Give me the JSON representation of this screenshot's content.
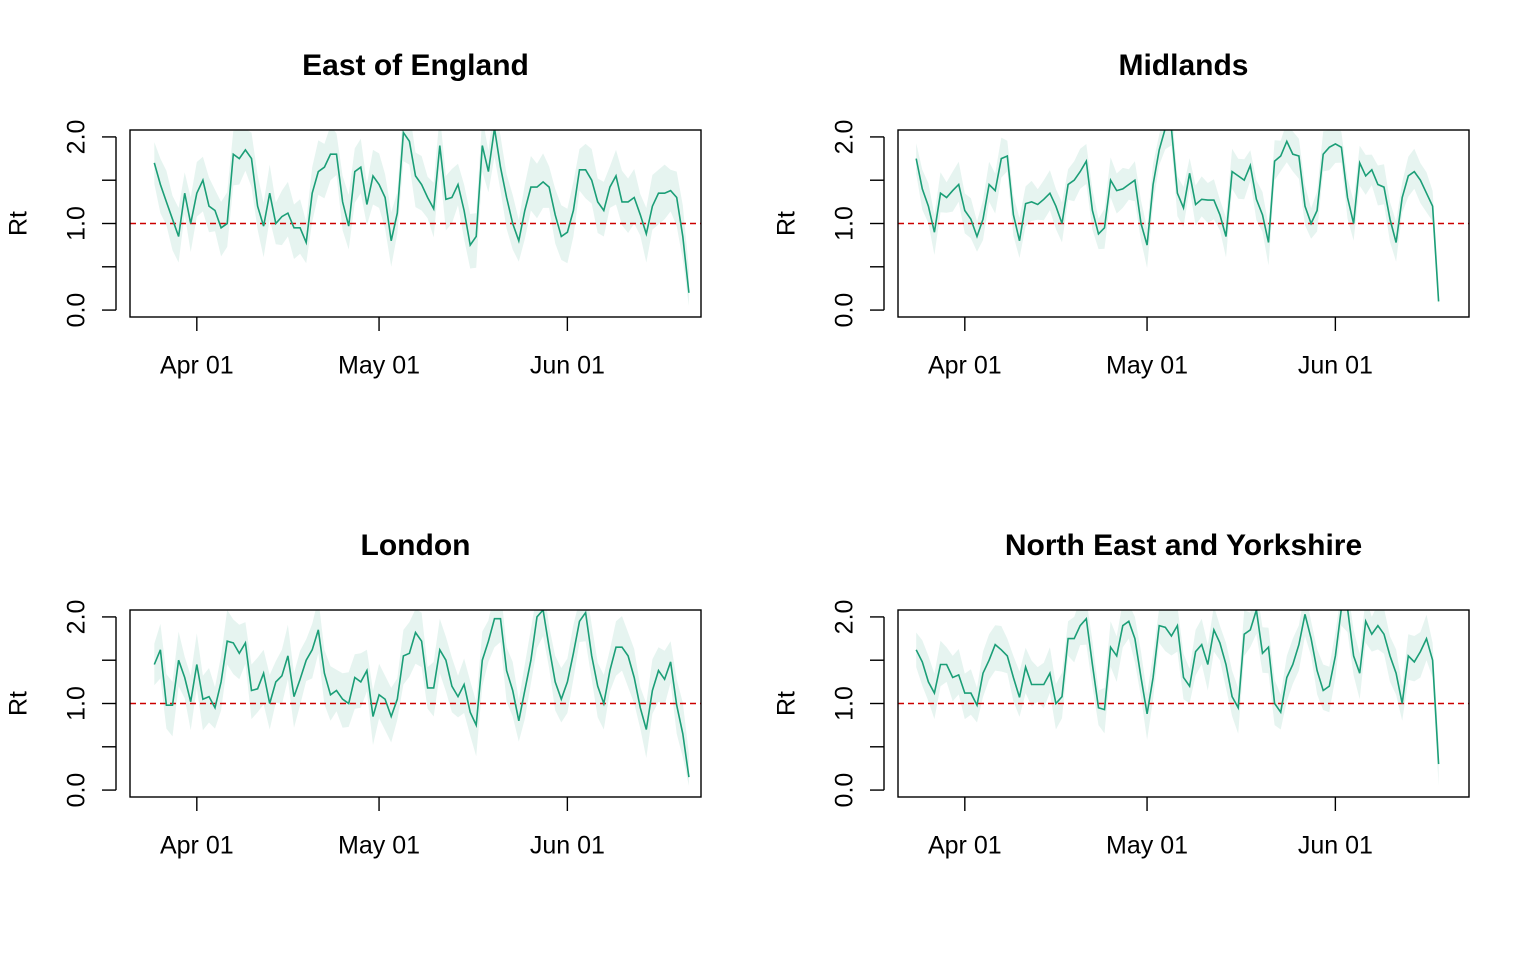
{
  "colors": {
    "line": "#1b9e77",
    "band": "#e6f4f0",
    "reference": "#cc0000",
    "axis": "#000000"
  },
  "chart_data": [
    {
      "type": "line",
      "title": "East of England",
      "ylabel": "Rt",
      "xlim": [
        "2020-03-21",
        "2020-06-23"
      ],
      "ylim": [
        0,
        2
      ],
      "yticks": [
        "0.0",
        "1.0",
        "2.0"
      ],
      "xticks": [
        {
          "date": "2020-04-01",
          "label": "Apr 01"
        },
        {
          "date": "2020-05-01",
          "label": "May 01"
        },
        {
          "date": "2020-06-01",
          "label": "Jun 01"
        }
      ],
      "reference_line": 1.0,
      "x_start": "2020-03-25",
      "values": [
        1.7,
        1.45,
        1.25,
        1.05,
        0.85,
        1.35,
        1.0,
        1.35,
        1.5,
        1.2,
        1.15,
        0.95,
        1.0,
        1.8,
        1.75,
        1.85,
        1.75,
        1.2,
        0.97,
        1.35,
        1.0,
        1.08,
        1.12,
        0.95,
        0.95,
        0.78,
        1.35,
        1.6,
        1.65,
        1.8,
        1.8,
        1.25,
        0.97,
        1.6,
        1.65,
        1.22,
        1.55,
        1.45,
        1.3,
        0.8,
        1.12,
        2.05,
        1.95,
        1.55,
        1.45,
        1.3,
        1.17,
        1.9,
        1.28,
        1.3,
        1.45,
        1.15,
        0.75,
        0.85,
        1.9,
        1.6,
        2.1,
        1.65,
        1.3,
        1.0,
        0.8,
        1.15,
        1.42,
        1.42,
        1.48,
        1.42,
        1.1,
        0.85,
        0.9,
        1.15,
        1.62,
        1.62,
        1.5,
        1.25,
        1.15,
        1.42,
        1.55,
        1.25,
        1.25,
        1.3,
        1.1,
        0.88,
        1.2,
        1.35,
        1.35,
        1.38,
        1.3,
        0.85,
        0.2
      ],
      "band_half_width": 0.3
    },
    {
      "type": "line",
      "title": "Midlands",
      "ylabel": "Rt",
      "xlim": [
        "2020-03-21",
        "2020-06-23"
      ],
      "ylim": [
        0,
        2
      ],
      "yticks": [
        "0.0",
        "1.0",
        "2.0"
      ],
      "xticks": [
        {
          "date": "2020-04-01",
          "label": "Apr 01"
        },
        {
          "date": "2020-05-01",
          "label": "May 01"
        },
        {
          "date": "2020-06-01",
          "label": "Jun 01"
        }
      ],
      "reference_line": 1.0,
      "x_start": "2020-03-24",
      "values": [
        1.75,
        1.4,
        1.2,
        0.9,
        1.35,
        1.3,
        1.38,
        1.45,
        1.15,
        1.05,
        0.85,
        1.05,
        1.45,
        1.38,
        1.75,
        1.78,
        1.1,
        0.8,
        1.23,
        1.25,
        1.22,
        1.28,
        1.35,
        1.2,
        1.0,
        1.45,
        1.5,
        1.6,
        1.72,
        1.15,
        0.88,
        0.95,
        1.5,
        1.38,
        1.4,
        1.45,
        1.5,
        1.0,
        0.75,
        1.45,
        1.85,
        2.1,
        2.1,
        1.35,
        1.18,
        1.58,
        1.22,
        1.28,
        1.27,
        1.27,
        1.1,
        0.85,
        1.6,
        1.55,
        1.5,
        1.67,
        1.28,
        1.1,
        0.78,
        1.72,
        1.78,
        1.95,
        1.8,
        1.78,
        1.2,
        1.0,
        1.15,
        1.8,
        1.88,
        1.92,
        1.88,
        1.3,
        1.0,
        1.7,
        1.55,
        1.62,
        1.45,
        1.42,
        1.05,
        0.78,
        1.3,
        1.55,
        1.6,
        1.5,
        1.35,
        1.2,
        0.1
      ],
      "band_half_width": 0.22
    },
    {
      "type": "line",
      "title": "London",
      "ylabel": "Rt",
      "xlim": [
        "2020-03-21",
        "2020-06-23"
      ],
      "ylim": [
        0,
        2
      ],
      "yticks": [
        "0.0",
        "1.0",
        "2.0"
      ],
      "xticks": [
        {
          "date": "2020-04-01",
          "label": "Apr 01"
        },
        {
          "date": "2020-05-01",
          "label": "May 01"
        },
        {
          "date": "2020-06-01",
          "label": "Jun 01"
        }
      ],
      "reference_line": 1.0,
      "x_start": "2020-03-25",
      "values": [
        1.45,
        1.62,
        0.98,
        0.98,
        1.5,
        1.3,
        1.02,
        1.45,
        1.05,
        1.08,
        0.95,
        1.25,
        1.72,
        1.7,
        1.58,
        1.7,
        1.15,
        1.17,
        1.35,
        1.0,
        1.25,
        1.32,
        1.55,
        1.08,
        1.28,
        1.5,
        1.62,
        1.85,
        1.35,
        1.1,
        1.15,
        1.05,
        1.0,
        1.3,
        1.25,
        1.38,
        0.85,
        1.1,
        1.05,
        0.85,
        1.05,
        1.55,
        1.58,
        1.82,
        1.72,
        1.18,
        1.18,
        1.62,
        1.5,
        1.2,
        1.08,
        1.22,
        0.9,
        0.75,
        1.5,
        1.72,
        1.98,
        1.98,
        1.38,
        1.15,
        0.8,
        1.15,
        1.5,
        2.0,
        2.08,
        1.65,
        1.25,
        1.05,
        1.25,
        1.58,
        1.95,
        2.05,
        1.55,
        1.2,
        1.0,
        1.38,
        1.65,
        1.65,
        1.55,
        1.3,
        0.95,
        0.7,
        1.15,
        1.38,
        1.28,
        1.48,
        0.98,
        0.65,
        0.15
      ],
      "band_half_width": 0.3
    },
    {
      "type": "line",
      "title": "North East and Yorkshire",
      "ylabel": "Rt",
      "xlim": [
        "2020-03-21",
        "2020-06-23"
      ],
      "ylim": [
        0,
        2
      ],
      "yticks": [
        "0.0",
        "1.0",
        "2.0"
      ],
      "xticks": [
        {
          "date": "2020-04-01",
          "label": "Apr 01"
        },
        {
          "date": "2020-05-01",
          "label": "May 01"
        },
        {
          "date": "2020-06-01",
          "label": "Jun 01"
        }
      ],
      "reference_line": 1.0,
      "x_start": "2020-03-24",
      "values": [
        1.62,
        1.48,
        1.25,
        1.12,
        1.45,
        1.45,
        1.3,
        1.33,
        1.12,
        1.12,
        0.98,
        1.35,
        1.5,
        1.68,
        1.62,
        1.55,
        1.3,
        1.07,
        1.42,
        1.22,
        1.22,
        1.22,
        1.35,
        1.0,
        1.08,
        1.75,
        1.75,
        1.9,
        1.98,
        1.45,
        0.95,
        0.93,
        1.65,
        1.55,
        1.9,
        1.95,
        1.75,
        1.3,
        0.88,
        1.3,
        1.9,
        1.88,
        1.78,
        1.9,
        1.3,
        1.2,
        1.6,
        1.68,
        1.45,
        1.85,
        1.7,
        1.45,
        1.08,
        0.95,
        1.8,
        1.85,
        2.08,
        1.58,
        1.65,
        1.0,
        0.9,
        1.3,
        1.45,
        1.68,
        2.03,
        1.75,
        1.38,
        1.15,
        1.2,
        1.55,
        2.1,
        2.1,
        1.55,
        1.35,
        1.95,
        1.8,
        1.9,
        1.8,
        1.55,
        1.35,
        1.0,
        1.55,
        1.48,
        1.6,
        1.75,
        1.5,
        0.3
      ],
      "band_half_width": 0.25
    }
  ]
}
